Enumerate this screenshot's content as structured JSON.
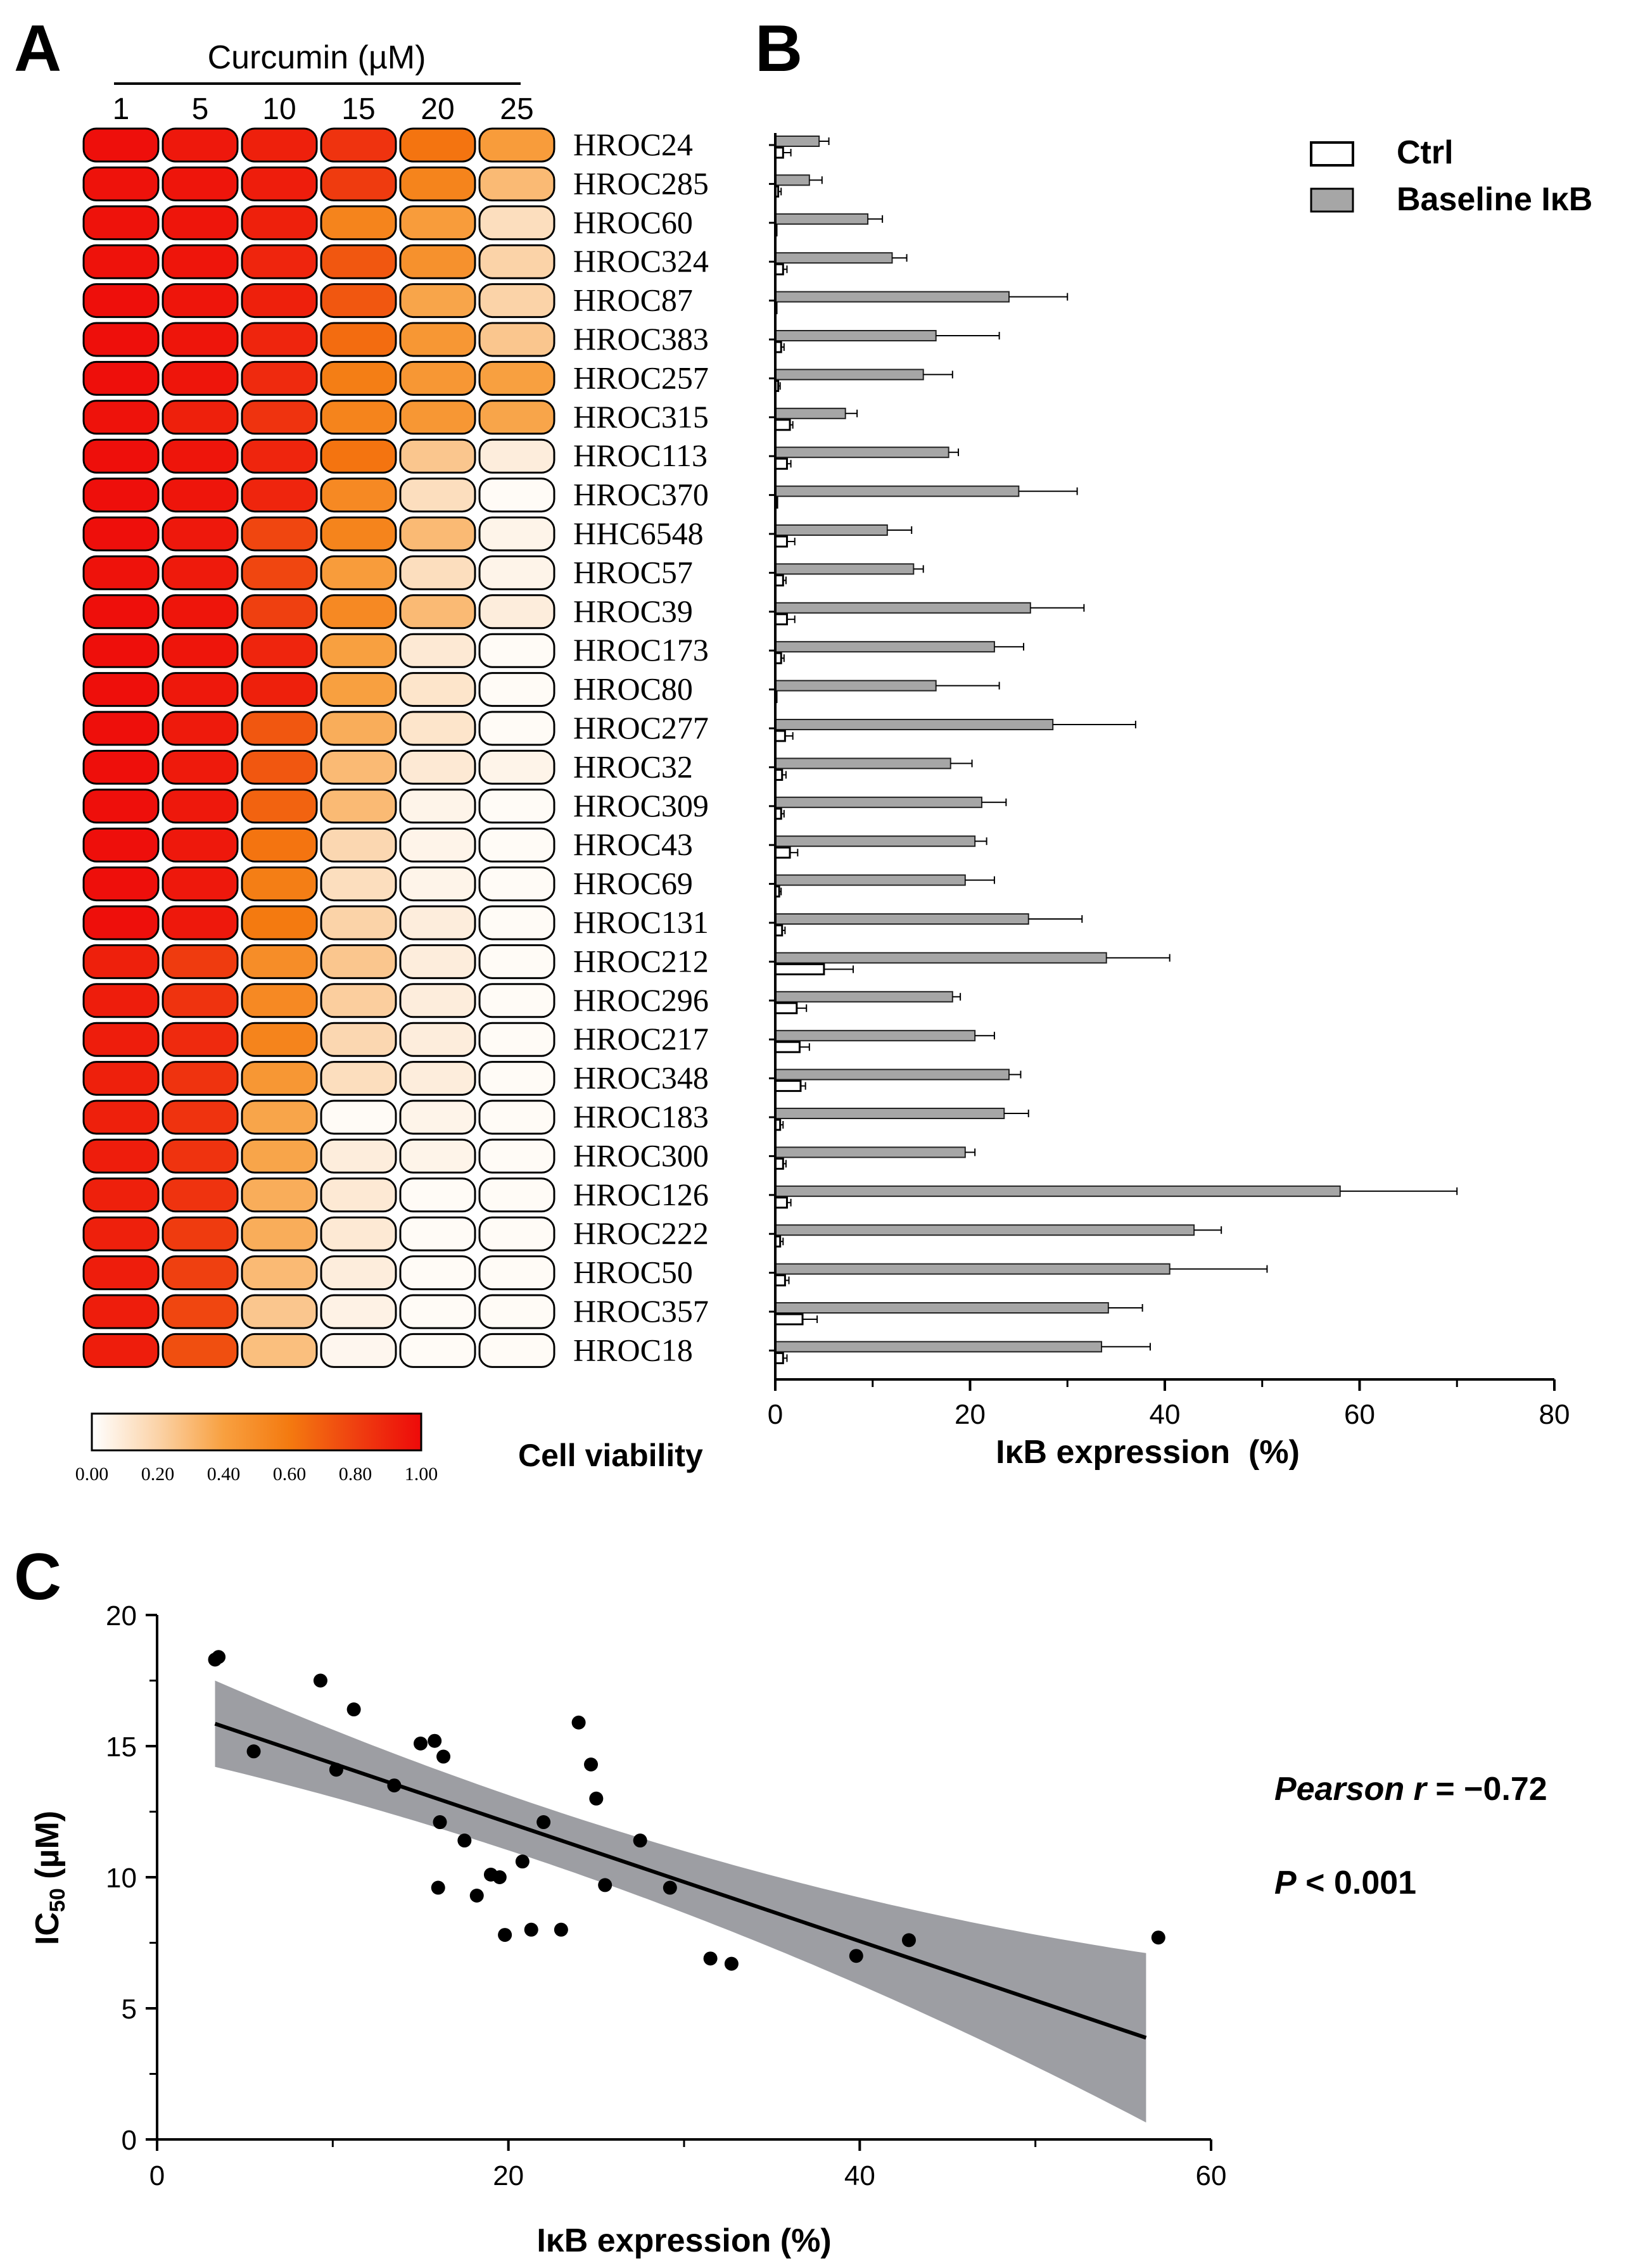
{
  "panels": {
    "a": "A",
    "b": "B",
    "c": "C"
  },
  "chart_data": [
    {
      "panel": "A",
      "type": "heatmap",
      "title": "Curcumin (µM)",
      "columns": [
        "1",
        "5",
        "10",
        "15",
        "20",
        "25"
      ],
      "rows": [
        "HROC24",
        "HROC285",
        "HROC60",
        "HROC324",
        "HROC87",
        "HROC383",
        "HROC257",
        "HROC315",
        "HROC113",
        "HROC370",
        "HHC6548",
        "HROC57",
        "HROC39",
        "HROC173",
        "HROC80",
        "HROC277",
        "HROC32",
        "HROC309",
        "HROC43",
        "HROC69",
        "HROC131",
        "HROC212",
        "HROC296",
        "HROC217",
        "HROC348",
        "HROC183",
        "HROC300",
        "HROC126",
        "HROC222",
        "HROC50",
        "HROC357",
        "HROC18"
      ],
      "values": [
        [
          0.98,
          0.95,
          0.92,
          0.85,
          0.62,
          0.42
        ],
        [
          0.97,
          0.96,
          0.93,
          0.82,
          0.55,
          0.3
        ],
        [
          0.97,
          0.96,
          0.92,
          0.55,
          0.42,
          0.15
        ],
        [
          0.97,
          0.96,
          0.9,
          0.72,
          0.48,
          0.2
        ],
        [
          0.98,
          0.96,
          0.92,
          0.72,
          0.38,
          0.2
        ],
        [
          0.98,
          0.96,
          0.9,
          0.65,
          0.45,
          0.25
        ],
        [
          0.98,
          0.96,
          0.88,
          0.58,
          0.45,
          0.4
        ],
        [
          0.97,
          0.92,
          0.85,
          0.55,
          0.45,
          0.38
        ],
        [
          0.98,
          0.96,
          0.9,
          0.62,
          0.25,
          0.08
        ],
        [
          0.98,
          0.96,
          0.9,
          0.52,
          0.15,
          0.02
        ],
        [
          0.98,
          0.95,
          0.78,
          0.55,
          0.3,
          0.05
        ],
        [
          0.97,
          0.94,
          0.78,
          0.42,
          0.15,
          0.05
        ],
        [
          0.98,
          0.96,
          0.8,
          0.52,
          0.3,
          0.08
        ],
        [
          0.98,
          0.96,
          0.9,
          0.4,
          0.1,
          0.02
        ],
        [
          0.98,
          0.95,
          0.92,
          0.4,
          0.12,
          0.02
        ],
        [
          0.98,
          0.94,
          0.72,
          0.35,
          0.12,
          0.02
        ],
        [
          0.98,
          0.94,
          0.72,
          0.3,
          0.1,
          0.05
        ],
        [
          0.98,
          0.95,
          0.68,
          0.3,
          0.05,
          0.02
        ],
        [
          0.98,
          0.95,
          0.62,
          0.18,
          0.05,
          0.02
        ],
        [
          0.98,
          0.95,
          0.58,
          0.15,
          0.05,
          0.02
        ],
        [
          0.98,
          0.95,
          0.6,
          0.2,
          0.08,
          0.02
        ],
        [
          0.92,
          0.82,
          0.5,
          0.25,
          0.08,
          0.02
        ],
        [
          0.93,
          0.85,
          0.52,
          0.22,
          0.08,
          0.02
        ],
        [
          0.93,
          0.88,
          0.55,
          0.18,
          0.08,
          0.02
        ],
        [
          0.92,
          0.85,
          0.45,
          0.15,
          0.08,
          0.02
        ],
        [
          0.92,
          0.85,
          0.38,
          0.02,
          0.05,
          0.02
        ],
        [
          0.93,
          0.85,
          0.38,
          0.08,
          0.05,
          0.02
        ],
        [
          0.92,
          0.85,
          0.35,
          0.1,
          0.02,
          0.02
        ],
        [
          0.92,
          0.82,
          0.35,
          0.1,
          0.02,
          0.02
        ],
        [
          0.93,
          0.8,
          0.3,
          0.08,
          0.02,
          0.02
        ],
        [
          0.93,
          0.78,
          0.25,
          0.06,
          0.02,
          0.02
        ],
        [
          0.93,
          0.75,
          0.28,
          0.04,
          0.02,
          0.02
        ]
      ],
      "colorbar": {
        "title": "Cell viability",
        "ticks": [
          "0.00",
          "0.20",
          "0.40",
          "0.60",
          "0.80",
          "1.00"
        ],
        "range": [
          0,
          1
        ],
        "colors": [
          "#ffffff",
          "#fbd3a8",
          "#f8a040",
          "#f47a10",
          "#ef4010",
          "#ee0a0a"
        ]
      }
    },
    {
      "panel": "B",
      "type": "bar",
      "orientation": "horizontal",
      "xlabel": "IκB expression  (%)",
      "xlim": [
        0,
        80
      ],
      "xticks": [
        "0",
        "20",
        "40",
        "60",
        "80"
      ],
      "categories": [
        "HROC24",
        "HROC285",
        "HROC60",
        "HROC324",
        "HROC87",
        "HROC383",
        "HROC257",
        "HROC315",
        "HROC113",
        "HROC370",
        "HHC6548",
        "HROC57",
        "HROC39",
        "HROC173",
        "HROC80",
        "HROC277",
        "HROC32",
        "HROC309",
        "HROC43",
        "HROC69",
        "HROC131",
        "HROC212",
        "HROC296",
        "HROC217",
        "HROC348",
        "HROC183",
        "HROC300",
        "HROC126",
        "HROC222",
        "HROC50",
        "HROC357",
        "HROC18"
      ],
      "series": [
        {
          "name": "Ctrl",
          "color": "#ffffff",
          "values": [
            0.8,
            0.3,
            0.1,
            0.8,
            0.1,
            0.6,
            0.3,
            1.5,
            1.2,
            0.2,
            1.2,
            0.8,
            1.2,
            0.6,
            0.1,
            1.0,
            0.7,
            0.6,
            1.5,
            0.4,
            0.7,
            5.0,
            2.2,
            2.5,
            2.6,
            0.5,
            0.8,
            1.2,
            0.5,
            1.0,
            2.8,
            0.8
          ],
          "errors": [
            0.8,
            0.3,
            0,
            0.4,
            0,
            0.3,
            0.2,
            0.3,
            0.4,
            0,
            0.8,
            0.3,
            0.8,
            0.3,
            0,
            0.8,
            0.4,
            0.3,
            0.8,
            0.2,
            0.3,
            3.0,
            1.0,
            1.0,
            0.5,
            0.3,
            0.3,
            0.4,
            0.3,
            0.4,
            1.5,
            0.4
          ]
        },
        {
          "name": "Baseline IκB",
          "color": "#a6a6a6",
          "values": [
            4.5,
            3.5,
            9.5,
            12.0,
            24.0,
            16.5,
            15.2,
            7.2,
            17.8,
            25.0,
            11.5,
            14.2,
            26.2,
            22.5,
            16.5,
            28.5,
            18.0,
            21.2,
            20.5,
            19.5,
            26.0,
            34.0,
            18.2,
            20.5,
            24.0,
            23.5,
            19.5,
            58.0,
            43.0,
            40.5,
            34.2,
            33.5
          ],
          "errors": [
            1.0,
            1.3,
            1.5,
            1.5,
            6.0,
            6.5,
            3.0,
            1.2,
            1.0,
            6.0,
            2.5,
            1.0,
            5.5,
            3.0,
            6.5,
            8.5,
            2.2,
            2.5,
            1.2,
            3.0,
            5.5,
            6.5,
            0.8,
            2.0,
            1.2,
            2.5,
            1.0,
            12.0,
            2.8,
            10.0,
            3.5,
            5.0
          ]
        }
      ]
    },
    {
      "panel": "C",
      "type": "scatter",
      "xlabel": "IκB expression (%)",
      "ylabel_main": "IC",
      "ylabel_sub": "50",
      "ylabel_unit": " (µM)",
      "xlim": [
        0,
        60
      ],
      "ylim": [
        0,
        20
      ],
      "xticks": [
        "0",
        "20",
        "40",
        "60"
      ],
      "yticks": [
        "0",
        "5",
        "10",
        "15",
        "20"
      ],
      "points": [
        [
          3.3,
          18.3
        ],
        [
          3.5,
          18.4
        ],
        [
          5.5,
          14.8
        ],
        [
          9.3,
          17.5
        ],
        [
          10.2,
          14.1
        ],
        [
          11.2,
          16.4
        ],
        [
          13.5,
          13.5
        ],
        [
          15.0,
          15.1
        ],
        [
          15.8,
          15.2
        ],
        [
          16.0,
          9.6
        ],
        [
          16.1,
          12.1
        ],
        [
          16.3,
          14.6
        ],
        [
          17.5,
          11.4
        ],
        [
          18.2,
          9.3
        ],
        [
          19.0,
          10.1
        ],
        [
          19.5,
          10.0
        ],
        [
          19.8,
          7.8
        ],
        [
          20.8,
          10.6
        ],
        [
          21.3,
          8.0
        ],
        [
          22.0,
          12.1
        ],
        [
          23.0,
          8.0
        ],
        [
          24.0,
          15.9
        ],
        [
          24.7,
          14.3
        ],
        [
          25.0,
          13.0
        ],
        [
          25.5,
          9.7
        ],
        [
          27.5,
          11.4
        ],
        [
          29.2,
          9.6
        ],
        [
          31.5,
          6.9
        ],
        [
          32.7,
          6.7
        ],
        [
          39.8,
          7.0
        ],
        [
          42.8,
          7.6
        ],
        [
          57.0,
          7.7
        ]
      ],
      "regression": {
        "slope": -0.226,
        "intercept": 16.6,
        "x_range": [
          3.3,
          56.3
        ]
      },
      "annotation_r_label": "Pearson r",
      "annotation_r_value": " = −0.72",
      "annotation_p_label": "P",
      "annotation_p_value": " < 0.001"
    }
  ]
}
